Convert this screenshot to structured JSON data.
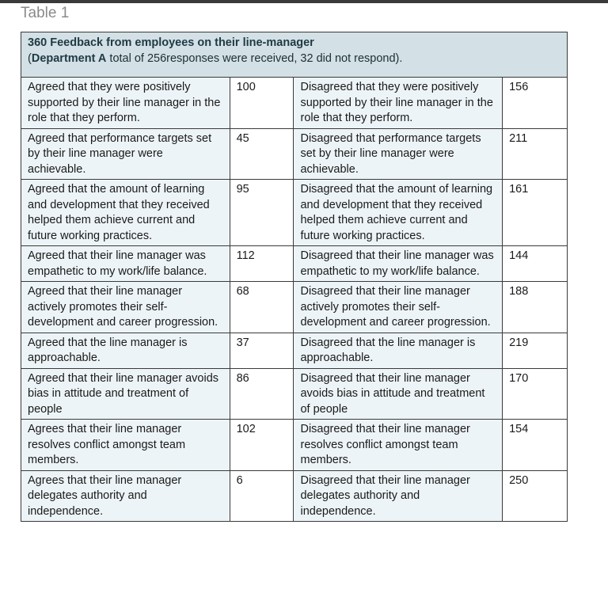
{
  "caption": "Table 1",
  "table": {
    "header": {
      "title": "360 Feedback from employees on their line-manager",
      "sub_open": "(",
      "department": "Department A",
      "sub_rest": " total of 256responses were received, 32 did not respond)."
    },
    "rows": [
      {
        "agree_label": "Agreed that they were positively supported by their line manager in the role that they perform.",
        "agree_value": "100",
        "disagree_label": "Disagreed that they were positively supported by their line manager in the role that they perform.",
        "disagree_value": "156"
      },
      {
        "agree_label": "Agreed that performance targets set by their line manager were achievable.",
        "agree_value": "45",
        "disagree_label": "Disagreed that performance targets set by their line manager were achievable.",
        "disagree_value": "211"
      },
      {
        "agree_label": "Agreed that the amount of learning and development that they received helped them achieve current and future working practices.",
        "agree_value": "95",
        "disagree_label": "Disagreed that the amount of learning and development that they received helped them achieve current and future working practices.",
        "disagree_value": "161"
      },
      {
        "agree_label": "Agreed that their line manager was empathetic to my work/life balance.",
        "agree_value": "112",
        "disagree_label": "Disagreed that their line manager was empathetic to my work/life balance.",
        "disagree_value": "144"
      },
      {
        "agree_label": "Agreed that their line manager actively promotes their self-development and career progression.",
        "agree_value": "68",
        "disagree_label": "Disagreed that their line manager actively promotes their self-development and career progression.",
        "disagree_value": "188"
      },
      {
        "agree_label": "Agreed that the line manager is approachable.",
        "agree_value": "37",
        "disagree_label": "Disagreed that the line manager is approachable.",
        "disagree_value": "219"
      },
      {
        "agree_label": "Agreed that their line manager avoids bias in attitude and treatment of people",
        "agree_value": "86",
        "disagree_label": "Disagreed that their line manager avoids bias in attitude and treatment of people",
        "disagree_value": "170"
      },
      {
        "agree_label": "Agrees that their line manager resolves conflict amongst team members.",
        "agree_value": "102",
        "disagree_label": "Disagreed that their line manager resolves conflict amongst team members.",
        "disagree_value": "154"
      },
      {
        "agree_label": "Agrees that their line manager delegates authority and independence.",
        "agree_value": "6",
        "disagree_label": "Disagreed that their line manager delegates authority and independence.",
        "disagree_value": "250"
      }
    ]
  },
  "colors": {
    "header_bg": "#d3e0e5",
    "label_bg": "#edf4f7",
    "value_bg": "#ffffff",
    "border": "#3a3a3a",
    "header_text": "#1e3a44",
    "caption_text": "#8a8a8a"
  }
}
